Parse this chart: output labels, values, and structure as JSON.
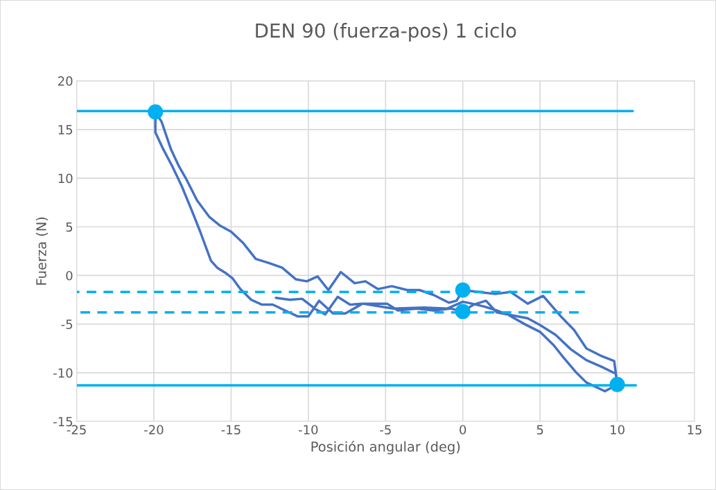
{
  "chart_data": {
    "type": "line",
    "title": "DEN 90 (fuerza-pos) 1 ciclo",
    "xlabel": "Posición angular (deg)",
    "ylabel": "Fuerza (N)",
    "xlim": [
      -25,
      15
    ],
    "xticks": [
      -25,
      -20,
      -15,
      -10,
      -5,
      0,
      5,
      10,
      15
    ],
    "ylim": [
      -15,
      20
    ],
    "yticks": [
      -15,
      -10,
      -5,
      0,
      5,
      10,
      15,
      20
    ],
    "grid": true,
    "legend": false,
    "series": [
      {
        "color": "#4472c4",
        "marker": "none",
        "line_style": "solid",
        "x": [
          -12.1,
          -11.2,
          -10.4,
          -9.5,
          -8.9,
          -8.1,
          -7.3,
          -6.5,
          -5.7,
          -4.9,
          -4.2,
          -3.0,
          -1.9,
          -0.8,
          0,
          0.7,
          1.5,
          2.2,
          3.2,
          4.2,
          5.0,
          6.0,
          7.0,
          8.0,
          9.0,
          9.9,
          10,
          9.2,
          8.0,
          7.3,
          6.5,
          5.9,
          5.0,
          4.0,
          3.0,
          2.2,
          1.4,
          0.6,
          0,
          -1.0,
          -2.5,
          -4.5,
          -6.5,
          -7.6,
          -8.4,
          -9.3,
          -10.0,
          -10.7,
          -11.5,
          -12.3,
          -13.0,
          -13.7,
          -14.4,
          -14.9,
          -15.4,
          -15.9,
          -16.3,
          -17.0,
          -17.5,
          -18.2,
          -18.8,
          -19.4,
          -19.9,
          -19.9,
          -19.5,
          -18.9,
          -18.4,
          -17.9,
          -17.2,
          -16.4,
          -15.7,
          -15.0,
          -14.2,
          -13.4,
          -12.6,
          -11.7,
          -10.8,
          -10.1,
          -9.4,
          -8.7,
          -7.9,
          -7.0,
          -6.3,
          -5.5,
          -4.6,
          -3.6,
          -2.8,
          -1.9,
          -0.9,
          -0.4,
          0,
          1.0,
          2.1,
          3.1,
          4.2,
          5.2,
          6.4,
          7.2,
          8.0,
          9.0,
          9.8,
          10
        ],
        "values": [
          -2.3,
          -2.5,
          -2.4,
          -3.5,
          -4.0,
          -2.2,
          -3.0,
          -2.9,
          -2.9,
          -2.9,
          -3.6,
          -3.4,
          -3.6,
          -3.4,
          -3.7,
          -3.0,
          -2.6,
          -3.8,
          -4.1,
          -4.4,
          -5.1,
          -6.1,
          -7.6,
          -8.7,
          -9.4,
          -10.1,
          -11.2,
          -11.9,
          -11.0,
          -9.9,
          -8.4,
          -7.2,
          -5.8,
          -5.0,
          -4.1,
          -3.6,
          -3.2,
          -2.9,
          -2.7,
          -3.4,
          -3.3,
          -3.4,
          -2.9,
          -3.9,
          -3.9,
          -2.6,
          -4.2,
          -4.2,
          -3.6,
          -3.0,
          -3.0,
          -2.5,
          -1.4,
          -0.3,
          0.3,
          0.8,
          1.5,
          4.5,
          6.5,
          9.2,
          11.2,
          13.0,
          14.7,
          16.8,
          15.8,
          13.0,
          11.3,
          9.9,
          7.7,
          6.0,
          5.1,
          4.5,
          3.3,
          1.7,
          1.3,
          0.8,
          -0.4,
          -0.6,
          -0.1,
          -1.5,
          0.35,
          -0.8,
          -0.6,
          -1.4,
          -1.1,
          -1.5,
          -1.5,
          -2.0,
          -2.8,
          -2.6,
          -1.5,
          -1.7,
          -1.9,
          -1.7,
          -2.9,
          -2.1,
          -4.3,
          -5.6,
          -7.5,
          -8.3,
          -8.8,
          -11.2
        ]
      },
      {
        "color": "#00b0f0",
        "marker": "none",
        "line_style": "solid",
        "x": [
          -25,
          11
        ],
        "values": [
          16.9,
          16.9
        ]
      },
      {
        "color": "#00b0f0",
        "marker": "none",
        "line_style": "solid",
        "x": [
          -25,
          11.2
        ],
        "values": [
          -11.3,
          -11.3
        ]
      },
      {
        "color": "#00b0f0",
        "marker": "none",
        "line_style": "dashed",
        "x": [
          7.9,
          -25
        ],
        "values": [
          -1.7,
          -1.7
        ]
      },
      {
        "color": "#00b0f0",
        "marker": "none",
        "line_style": "dashed",
        "x": [
          7.5,
          -25
        ],
        "values": [
          -3.8,
          -3.8
        ]
      },
      {
        "type": "scatter",
        "color": "#00b0f0",
        "marker": "circle",
        "x": [
          -19.9,
          0,
          0,
          10
        ],
        "values": [
          16.8,
          -1.5,
          -3.7,
          -11.2
        ]
      }
    ]
  }
}
